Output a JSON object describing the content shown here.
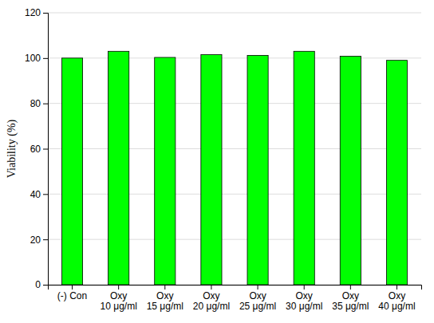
{
  "chart_data": {
    "type": "bar",
    "categories": [
      "(-) Con",
      "Oxy\n10 μg/ml",
      "Oxy\n15 μg/ml",
      "Oxy\n20 μg/ml",
      "Oxy\n25 μg/ml",
      "Oxy\n30 μg/ml",
      "Oxy\n35 μg/ml",
      "Oxy\n40 μg/ml"
    ],
    "values": [
      100.0,
      103.0,
      100.3,
      101.5,
      101.2,
      103.0,
      100.8,
      99.0
    ],
    "color": "#00FF00",
    "ylabel": "Viability (%)",
    "ylim": [
      0,
      120
    ],
    "yticks": [
      0,
      20,
      40,
      60,
      80,
      100,
      120
    ],
    "grid": true
  }
}
